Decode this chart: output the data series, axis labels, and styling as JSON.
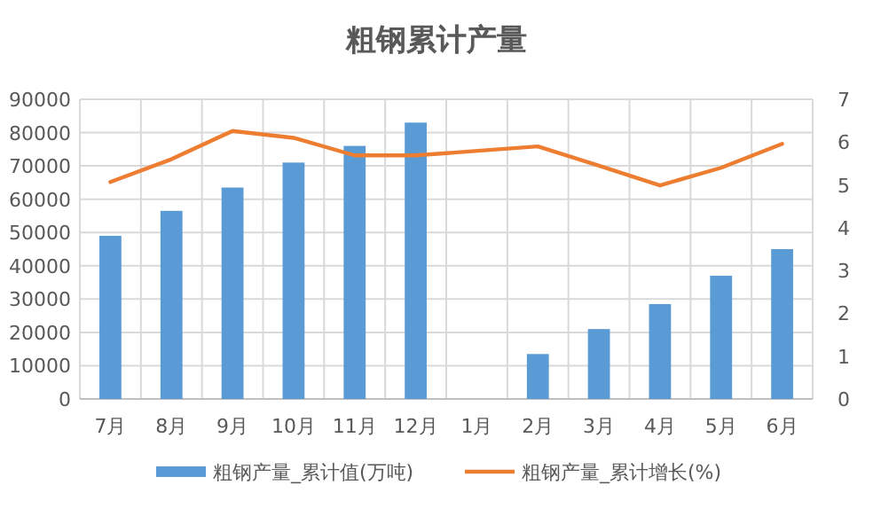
{
  "chart_data": {
    "type": "bar",
    "title": "粗钢累计产量",
    "categories": [
      "7月",
      "8月",
      "9月",
      "10月",
      "11月",
      "12月",
      "1月",
      "2月",
      "3月",
      "4月",
      "5月",
      "6月"
    ],
    "series": [
      {
        "name": "粗钢产量_累计值(万吨)",
        "color": "#5b9bd5",
        "values": [
          49000,
          56500,
          63500,
          71000,
          76000,
          83000,
          null,
          13500,
          21000,
          28500,
          37000,
          45000
        ]
      },
      {
        "name": "粗钢产量_累计增长(%)",
        "type": "line",
        "axis": "y2",
        "color": "#ed7d31",
        "values": [
          5.07,
          5.6,
          6.26,
          6.1,
          5.69,
          5.69,
          null,
          5.9,
          5.45,
          4.99,
          5.4,
          5.96
        ]
      }
    ],
    "ylim": [
      0,
      90000
    ],
    "yticks": [
      0,
      10000,
      20000,
      30000,
      40000,
      50000,
      60000,
      70000,
      80000,
      90000
    ],
    "y2lim": [
      0,
      7
    ],
    "y2ticks": [
      0,
      1,
      2,
      3,
      4,
      5,
      6,
      7
    ],
    "grid": true,
    "legend": "bottom",
    "marker": "none",
    "line_style": "solid"
  }
}
